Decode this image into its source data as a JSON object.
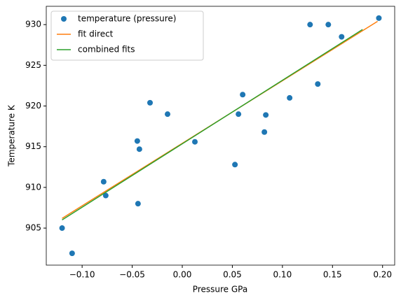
{
  "chart_data": {
    "type": "scatter",
    "x_label": "Pressure GPa",
    "y_label": "Temperature K",
    "xlim": [
      -0.1358,
      0.2121
    ],
    "ylim": [
      900.45,
      932.25
    ],
    "xticks": [
      {
        "value": -0.1,
        "label": "−0.10"
      },
      {
        "value": -0.05,
        "label": "−0.05"
      },
      {
        "value": 0,
        "label": "0.00"
      },
      {
        "value": 0.05,
        "label": "0.05"
      },
      {
        "value": 0.1,
        "label": "0.10"
      },
      {
        "value": 0.15,
        "label": "0.15"
      },
      {
        "value": 0.2,
        "label": "0.20"
      }
    ],
    "yticks": [
      905,
      910,
      915,
      920,
      925,
      930
    ],
    "legend": "upper left",
    "series": [
      {
        "name": "temperature (pressure)",
        "type": "scatter",
        "color": "#1f77b4",
        "x": [
          -0.12,
          -0.11,
          -0.0785,
          -0.0764,
          -0.0449,
          -0.0428,
          -0.0442,
          -0.0322,
          -0.0147,
          0.0126,
          0.0526,
          0.0561,
          0.0603,
          0.082,
          0.0834,
          0.1072,
          0.1276,
          0.1353,
          0.1458,
          0.1591,
          0.1963
        ],
        "values": [
          905.0,
          901.9,
          910.7,
          909.0,
          915.7,
          914.7,
          908.0,
          920.4,
          919.0,
          915.6,
          912.8,
          919.0,
          921.4,
          916.8,
          918.9,
          921.0,
          930.0,
          922.7,
          930.0,
          928.5,
          930.8
        ]
      },
      {
        "name": "fit direct",
        "type": "line",
        "color": "#ff7f0e",
        "x": [
          -0.12,
          0.195
        ],
        "values": [
          906.2,
          930.4
        ]
      },
      {
        "name": "combined fits",
        "type": "line",
        "color": "#2ca02c",
        "x": [
          -0.12,
          0.18
        ],
        "values": [
          906.0,
          929.4
        ]
      }
    ]
  }
}
